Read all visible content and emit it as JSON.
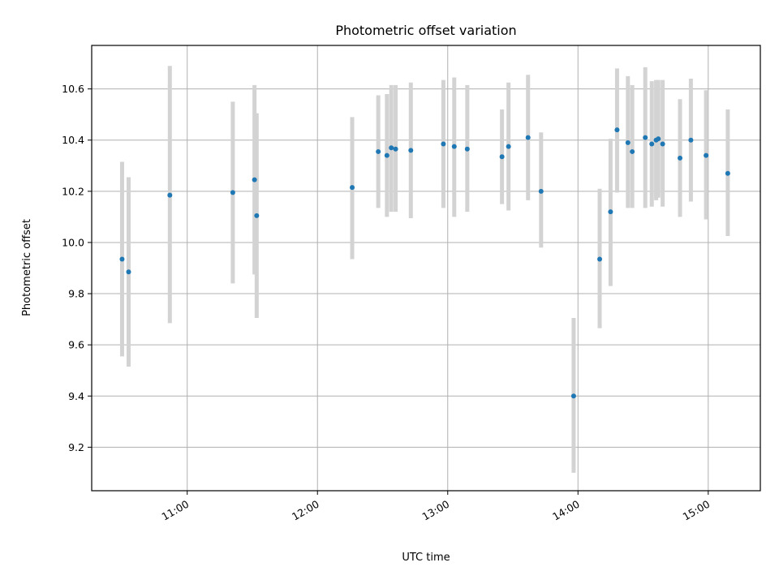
{
  "chart_data": {
    "type": "scatter",
    "title": "Photometric offset variation",
    "xlabel": "UTC time",
    "ylabel": "Photometric offset",
    "xlim": [
      "10:16",
      "15:24"
    ],
    "ylim": [
      9.03,
      10.77
    ],
    "x_ticks": [
      "11:00",
      "12:00",
      "13:00",
      "14:00",
      "15:00"
    ],
    "y_ticks": [
      9.2,
      9.4,
      9.6,
      9.8,
      10.0,
      10.2,
      10.4,
      10.6
    ],
    "y_tick_labels": [
      "9.2",
      "9.4",
      "9.6",
      "9.8",
      "10.0",
      "10.2",
      "10.4",
      "10.6"
    ],
    "grid": true,
    "colors": {
      "marker": "#1f77b4",
      "errorbar": "#d3d3d3",
      "grid": "#b0b0b0"
    },
    "points": [
      {
        "x": "10:30",
        "y": 9.935,
        "lo": 9.555,
        "hi": 10.315
      },
      {
        "x": "10:33",
        "y": 9.885,
        "lo": 9.515,
        "hi": 10.255
      },
      {
        "x": "10:52",
        "y": 10.185,
        "lo": 9.685,
        "hi": 10.69
      },
      {
        "x": "11:21",
        "y": 10.195,
        "lo": 9.84,
        "hi": 10.55
      },
      {
        "x": "11:31",
        "y": 10.245,
        "lo": 9.875,
        "hi": 10.615
      },
      {
        "x": "11:32",
        "y": 10.105,
        "lo": 9.705,
        "hi": 10.505
      },
      {
        "x": "12:16",
        "y": 10.215,
        "lo": 9.935,
        "hi": 10.49
      },
      {
        "x": "12:28",
        "y": 10.355,
        "lo": 10.135,
        "hi": 10.575
      },
      {
        "x": "12:32",
        "y": 10.34,
        "lo": 10.1,
        "hi": 10.58
      },
      {
        "x": "12:34",
        "y": 10.37,
        "lo": 10.12,
        "hi": 10.615
      },
      {
        "x": "12:36",
        "y": 10.365,
        "lo": 10.12,
        "hi": 10.615
      },
      {
        "x": "12:43",
        "y": 10.36,
        "lo": 10.095,
        "hi": 10.625
      },
      {
        "x": "12:58",
        "y": 10.385,
        "lo": 10.135,
        "hi": 10.635
      },
      {
        "x": "13:03",
        "y": 10.375,
        "lo": 10.1,
        "hi": 10.645
      },
      {
        "x": "13:09",
        "y": 10.365,
        "lo": 10.12,
        "hi": 10.615
      },
      {
        "x": "13:25",
        "y": 10.335,
        "lo": 10.15,
        "hi": 10.52
      },
      {
        "x": "13:28",
        "y": 10.375,
        "lo": 10.125,
        "hi": 10.625
      },
      {
        "x": "13:37",
        "y": 10.41,
        "lo": 10.165,
        "hi": 10.655
      },
      {
        "x": "13:43",
        "y": 10.2,
        "lo": 9.98,
        "hi": 10.43
      },
      {
        "x": "13:58",
        "y": 9.4,
        "lo": 9.1,
        "hi": 9.705
      },
      {
        "x": "14:10",
        "y": 9.935,
        "lo": 9.665,
        "hi": 10.21
      },
      {
        "x": "14:15",
        "y": 10.12,
        "lo": 9.83,
        "hi": 10.405
      },
      {
        "x": "14:18",
        "y": 10.44,
        "lo": 10.195,
        "hi": 10.68
      },
      {
        "x": "14:23",
        "y": 10.39,
        "lo": 10.135,
        "hi": 10.65
      },
      {
        "x": "14:25",
        "y": 10.355,
        "lo": 10.135,
        "hi": 10.615
      },
      {
        "x": "14:31",
        "y": 10.41,
        "lo": 10.135,
        "hi": 10.685
      },
      {
        "x": "14:34",
        "y": 10.385,
        "lo": 10.14,
        "hi": 10.63
      },
      {
        "x": "14:36",
        "y": 10.4,
        "lo": 10.165,
        "hi": 10.635
      },
      {
        "x": "14:37",
        "y": 10.405,
        "lo": 10.175,
        "hi": 10.635
      },
      {
        "x": "14:39",
        "y": 10.385,
        "lo": 10.14,
        "hi": 10.635
      },
      {
        "x": "14:47",
        "y": 10.33,
        "lo": 10.1,
        "hi": 10.56
      },
      {
        "x": "14:52",
        "y": 10.4,
        "lo": 10.16,
        "hi": 10.64
      },
      {
        "x": "14:59",
        "y": 10.34,
        "lo": 10.09,
        "hi": 10.595
      },
      {
        "x": "15:09",
        "y": 10.27,
        "lo": 10.025,
        "hi": 10.52
      }
    ]
  }
}
